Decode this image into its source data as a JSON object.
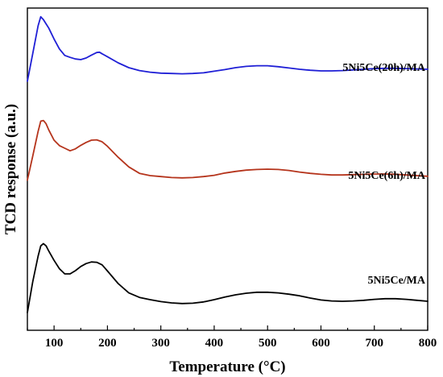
{
  "chart_data": {
    "type": "line",
    "title": "",
    "xlabel": "Temperature (°C)",
    "ylabel": "TCD response (a.u.)",
    "xlim": [
      50,
      800
    ],
    "ylim": [
      0,
      1
    ],
    "xticks": [
      100,
      200,
      300,
      400,
      500,
      600,
      700,
      800
    ],
    "yticks_shown": false,
    "grid": false,
    "legend": "labels placed on curves (right side)",
    "series": [
      {
        "name": "5Ni5Ce(20h)/MA",
        "color": "#1f1fd6",
        "x": [
          50,
          60,
          70,
          75,
          80,
          85,
          90,
          100,
          110,
          120,
          130,
          140,
          150,
          160,
          170,
          180,
          185,
          190,
          200,
          220,
          240,
          260,
          280,
          300,
          320,
          340,
          360,
          380,
          400,
          420,
          440,
          460,
          480,
          500,
          520,
          540,
          560,
          580,
          600,
          620,
          640,
          660,
          680,
          700,
          720,
          740,
          760,
          780,
          800
        ],
        "y": [
          0.773,
          0.858,
          0.945,
          0.973,
          0.964,
          0.951,
          0.938,
          0.904,
          0.873,
          0.853,
          0.847,
          0.842,
          0.84,
          0.845,
          0.854,
          0.862,
          0.863,
          0.858,
          0.849,
          0.83,
          0.815,
          0.806,
          0.801,
          0.798,
          0.797,
          0.796,
          0.797,
          0.799,
          0.804,
          0.809,
          0.815,
          0.819,
          0.821,
          0.821,
          0.818,
          0.814,
          0.81,
          0.807,
          0.805,
          0.805,
          0.806,
          0.808,
          0.81,
          0.812,
          0.813,
          0.813,
          0.812,
          0.811,
          0.81
        ]
      },
      {
        "name": "5Ni5Ce(6h)/MA",
        "color": "#b5341c",
        "x": [
          50,
          60,
          70,
          75,
          80,
          85,
          90,
          100,
          110,
          120,
          130,
          140,
          150,
          160,
          170,
          180,
          190,
          200,
          220,
          240,
          260,
          280,
          300,
          320,
          340,
          360,
          380,
          400,
          420,
          440,
          460,
          480,
          500,
          520,
          540,
          560,
          580,
          600,
          620,
          640,
          660,
          680,
          700,
          720,
          740,
          760,
          780,
          800
        ],
        "y": [
          0.466,
          0.54,
          0.617,
          0.649,
          0.651,
          0.641,
          0.622,
          0.59,
          0.573,
          0.565,
          0.557,
          0.563,
          0.574,
          0.583,
          0.59,
          0.591,
          0.585,
          0.571,
          0.537,
          0.507,
          0.487,
          0.48,
          0.477,
          0.474,
          0.473,
          0.474,
          0.477,
          0.481,
          0.488,
          0.493,
          0.497,
          0.499,
          0.5,
          0.499,
          0.496,
          0.491,
          0.487,
          0.484,
          0.482,
          0.482,
          0.483,
          0.484,
          0.485,
          0.485,
          0.484,
          0.482,
          0.48,
          0.478
        ]
      },
      {
        "name": "5Ni5Ce/MA",
        "color": "#000000",
        "x": [
          50,
          60,
          70,
          75,
          80,
          85,
          90,
          100,
          110,
          120,
          130,
          140,
          150,
          160,
          170,
          180,
          190,
          200,
          220,
          240,
          260,
          280,
          300,
          320,
          340,
          360,
          380,
          400,
          420,
          440,
          460,
          480,
          500,
          520,
          540,
          560,
          580,
          600,
          620,
          640,
          660,
          680,
          700,
          720,
          740,
          760,
          780,
          800
        ],
        "y": [
          0.055,
          0.15,
          0.23,
          0.262,
          0.269,
          0.262,
          0.246,
          0.217,
          0.191,
          0.175,
          0.175,
          0.185,
          0.198,
          0.207,
          0.212,
          0.211,
          0.203,
          0.184,
          0.145,
          0.116,
          0.102,
          0.095,
          0.089,
          0.085,
          0.083,
          0.084,
          0.088,
          0.095,
          0.103,
          0.11,
          0.115,
          0.118,
          0.118,
          0.116,
          0.112,
          0.107,
          0.1,
          0.094,
          0.091,
          0.09,
          0.091,
          0.093,
          0.096,
          0.098,
          0.098,
          0.096,
          0.093,
          0.09
        ]
      }
    ]
  }
}
